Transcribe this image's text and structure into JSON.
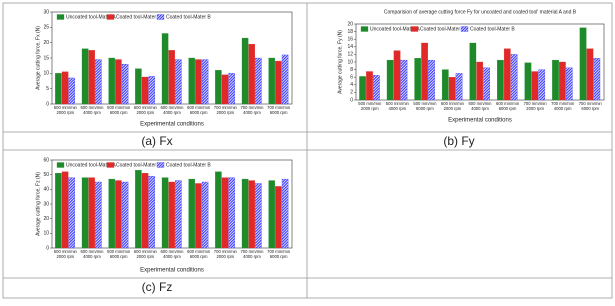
{
  "chart_data": [
    {
      "type": "bar",
      "caption": "(a)  Fx",
      "ylabel": "Average cutting force, Fx (N)",
      "xlabel": "Experimental conditions",
      "categories": [
        "500 mm/min 2000 rpm",
        "500 mm/min 4000 rpm",
        "500 mm/min 6000 rpm",
        "600 mm/min 2000 rpm",
        "600 mm/min 4000 rpm",
        "600 mm/min 6000 rpm",
        "700 mm/min 2000 rpm",
        "700 mm/min 4000 rpm",
        "700 mm/min 6000 rpm"
      ],
      "series": [
        {
          "name": "Uncoated tool-Mater A",
          "color": "#1f8a2a",
          "values": [
            10,
            18,
            15,
            11.5,
            23,
            15,
            11,
            21.5,
            15
          ]
        },
        {
          "name": "Coated tool-Mater A",
          "color": "#e02a2a",
          "values": [
            10.5,
            17.5,
            14.5,
            8.8,
            17.5,
            14.5,
            9.5,
            19.5,
            14
          ]
        },
        {
          "name": "Coated tool-Mater B",
          "color": "#3a3aff",
          "hatch": true,
          "values": [
            8.5,
            14.5,
            13,
            9,
            14.5,
            14.5,
            10,
            15,
            16
          ]
        }
      ],
      "ylim": [
        0,
        30
      ],
      "yticks": [
        0,
        5,
        10,
        15,
        20,
        25,
        30
      ]
    },
    {
      "type": "bar",
      "caption": "(b)  Fy",
      "title": "Comparision of average cutting force Fy for uncoated and coated tool' material A and B",
      "ylabel": "Average cutting force, Fy (N)",
      "xlabel": "Experimental conditions",
      "categories": [
        "500 mm/min 2000 rpm",
        "500 mm/min 4000 rpm",
        "500 mm/min 6000 rpm",
        "600 mm/min 2000 rpm",
        "600 mm/min 4000 rpm",
        "600 mm/min 6000 rpm",
        "700 mm/min 2000 rpm",
        "700 mm/min 4000 rpm",
        "700 mm/min 6000 rpm"
      ],
      "series": [
        {
          "name": "Uncoated tool-Mater A",
          "color": "#1f8a2a",
          "values": [
            6.2,
            10.5,
            11,
            8,
            15,
            10.5,
            9.8,
            10.5,
            19
          ]
        },
        {
          "name": "Coated tool-Mater A",
          "color": "#e02a2a",
          "values": [
            7.5,
            13,
            15,
            6,
            10,
            13.5,
            7.5,
            10,
            13.5
          ]
        },
        {
          "name": "Coated tool-Mater B",
          "color": "#3a3aff",
          "hatch": true,
          "values": [
            6.5,
            10.5,
            10.5,
            7,
            8.5,
            12,
            8,
            8.5,
            11
          ]
        }
      ],
      "ylim": [
        0,
        20
      ],
      "yticks": [
        0,
        2,
        4,
        6,
        8,
        10,
        12,
        14,
        16,
        18,
        20
      ]
    },
    {
      "type": "bar",
      "caption": "(c)  Fz",
      "ylabel": "Average cutting force, Fz (N)",
      "xlabel": "Experimental conditions",
      "categories": [
        "500 mm/min 2000 rpm",
        "500 mm/min 4000 rpm",
        "500 mm/min 6000 rpm",
        "600 mm/min 2000 rpm",
        "600 mm/min 4000 rpm",
        "600 mm/min 6000 rpm",
        "700 mm/min 2000 rpm",
        "700 mm/min 4000 rpm",
        "700 mm/min 6000 rpm"
      ],
      "series": [
        {
          "name": "Uncoated tool-Mater A",
          "color": "#1f8a2a",
          "values": [
            51,
            48,
            47,
            53,
            48,
            47,
            52,
            47,
            46
          ]
        },
        {
          "name": "Coated tool-Mater A",
          "color": "#e02a2a",
          "values": [
            52,
            48,
            46,
            51,
            45,
            44,
            48,
            46,
            42
          ]
        },
        {
          "name": "Coated tool-Mater B",
          "color": "#3a3aff",
          "hatch": true,
          "values": [
            48,
            45,
            45,
            49,
            46,
            45,
            48,
            44,
            47
          ]
        }
      ],
      "ylim": [
        0,
        60
      ],
      "yticks": [
        0,
        10,
        20,
        30,
        40,
        50,
        60
      ]
    }
  ]
}
